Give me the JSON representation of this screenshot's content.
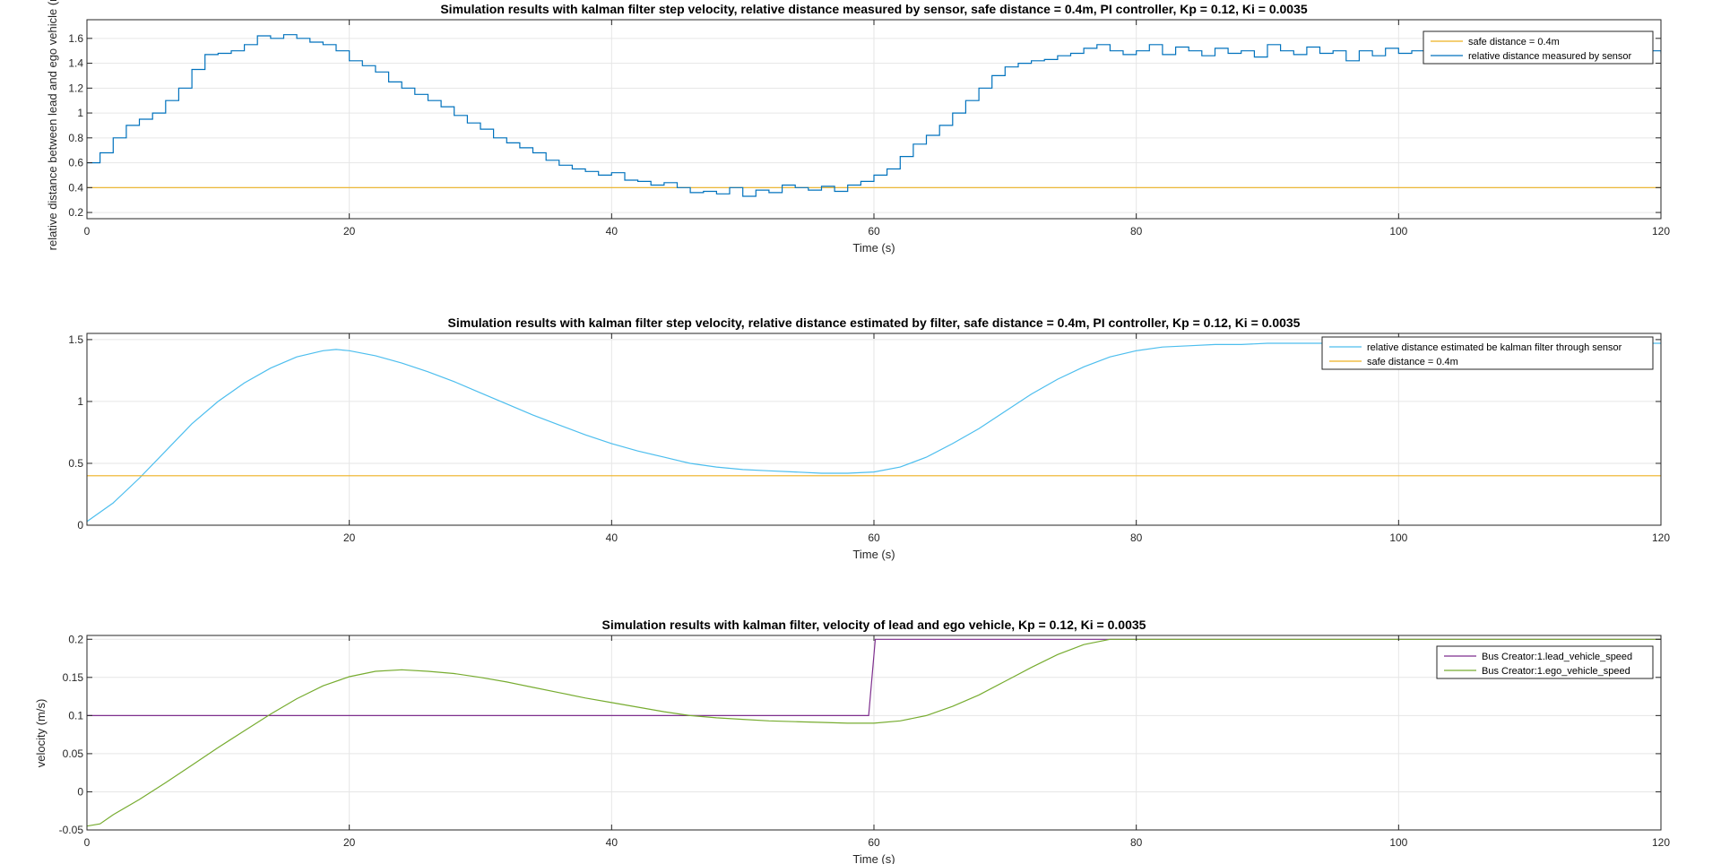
{
  "chart_data": [
    {
      "type": "line",
      "title": "Simulation results with kalman filter step velocity, relative distance measured by sensor, safe distance = 0.4m, PI controller, Kp = 0.12, Ki = 0.0035",
      "xlabel": "Time (s)",
      "ylabel": "relative distance between lead and ego vehicle (m)",
      "xlim": [
        0,
        120
      ],
      "ylim": [
        0.15,
        1.75
      ],
      "xticks": [
        0,
        20,
        40,
        60,
        80,
        100,
        120
      ],
      "xtick_labels": [
        "0",
        "20",
        "40",
        "60",
        "80",
        "100",
        "120"
      ],
      "yticks": [
        0.2,
        0.4,
        0.6,
        0.8,
        1,
        1.2,
        1.4,
        1.6
      ],
      "ytick_labels": [
        "0.2",
        "0.4",
        "0.6",
        "0.8",
        "1",
        "1.2",
        "1.4",
        "1.6"
      ],
      "grid": true,
      "legend_position": "top-right",
      "series": [
        {
          "name": "safe distance = 0.4m",
          "color": "#EDB120",
          "step": false,
          "x": [
            0,
            120
          ],
          "y": [
            0.4,
            0.4
          ]
        },
        {
          "name": "relative distance measured by sensor",
          "color": "#0072BD",
          "step": true,
          "x": [
            0,
            1,
            2,
            3,
            4,
            5,
            6,
            7,
            8,
            9,
            10,
            11,
            12,
            13,
            14,
            15,
            16,
            17,
            18,
            19,
            20,
            21,
            22,
            23,
            24,
            25,
            26,
            27,
            28,
            29,
            30,
            31,
            32,
            33,
            34,
            35,
            36,
            37,
            38,
            39,
            40,
            41,
            42,
            43,
            44,
            45,
            46,
            47,
            48,
            49,
            50,
            51,
            52,
            53,
            54,
            55,
            56,
            57,
            58,
            59,
            60,
            61,
            62,
            63,
            64,
            65,
            66,
            67,
            68,
            69,
            70,
            71,
            72,
            73,
            74,
            75,
            76,
            77,
            78,
            79,
            80,
            81,
            82,
            83,
            84,
            85,
            86,
            87,
            88,
            89,
            90,
            91,
            92,
            93,
            94,
            95,
            96,
            97,
            98,
            99,
            100,
            101,
            102,
            103,
            104,
            105,
            106,
            107,
            108,
            109,
            110,
            111,
            112,
            113,
            114,
            115,
            116,
            117,
            118,
            119,
            120
          ],
          "y": [
            0.6,
            0.68,
            0.8,
            0.9,
            0.95,
            1.0,
            1.1,
            1.2,
            1.35,
            1.47,
            1.48,
            1.5,
            1.55,
            1.62,
            1.6,
            1.63,
            1.6,
            1.57,
            1.55,
            1.5,
            1.42,
            1.38,
            1.33,
            1.25,
            1.2,
            1.15,
            1.1,
            1.05,
            0.98,
            0.92,
            0.87,
            0.8,
            0.76,
            0.72,
            0.68,
            0.62,
            0.58,
            0.55,
            0.53,
            0.5,
            0.52,
            0.46,
            0.45,
            0.42,
            0.44,
            0.4,
            0.36,
            0.37,
            0.35,
            0.4,
            0.33,
            0.38,
            0.36,
            0.42,
            0.4,
            0.38,
            0.41,
            0.37,
            0.42,
            0.45,
            0.5,
            0.55,
            0.65,
            0.75,
            0.82,
            0.9,
            1.0,
            1.1,
            1.2,
            1.3,
            1.37,
            1.4,
            1.42,
            1.43,
            1.46,
            1.48,
            1.52,
            1.55,
            1.5,
            1.47,
            1.5,
            1.55,
            1.47,
            1.53,
            1.5,
            1.46,
            1.52,
            1.48,
            1.5,
            1.45,
            1.55,
            1.5,
            1.47,
            1.53,
            1.48,
            1.5,
            1.42,
            1.5,
            1.46,
            1.52,
            1.48,
            1.5,
            1.45,
            1.52,
            1.47,
            1.5,
            1.43,
            1.5,
            1.48,
            1.45,
            1.52,
            1.47,
            1.42,
            1.5,
            1.44,
            1.5,
            1.4,
            1.46,
            1.43,
            1.5,
            1.48
          ]
        }
      ]
    },
    {
      "type": "line",
      "title": "Simulation results with kalman filter step velocity, relative distance estimated by filter, safe distance = 0.4m, PI controller, Kp = 0.12, Ki = 0.0035",
      "xlabel": "Time (s)",
      "ylabel": "",
      "xlim": [
        0,
        120
      ],
      "ylim": [
        0,
        1.55
      ],
      "xticks": [
        20,
        40,
        60,
        80,
        100,
        120
      ],
      "xtick_labels": [
        "20",
        "40",
        "60",
        "80",
        "100",
        "120"
      ],
      "yticks": [
        0,
        0.5,
        1,
        1.5
      ],
      "ytick_labels": [
        "0",
        "0.5",
        "1",
        "1.5"
      ],
      "grid": true,
      "legend_position": "top-right",
      "series": [
        {
          "name": "relative distance estimated be kalman filter through sensor",
          "color": "#4DBEEE",
          "step": false,
          "x": [
            0,
            2,
            4,
            6,
            8,
            10,
            12,
            14,
            16,
            18,
            19,
            20,
            22,
            24,
            26,
            28,
            30,
            32,
            34,
            36,
            38,
            40,
            42,
            44,
            46,
            48,
            50,
            52,
            54,
            56,
            58,
            60,
            62,
            64,
            66,
            68,
            70,
            72,
            74,
            76,
            78,
            80,
            82,
            84,
            86,
            88,
            90,
            92,
            94,
            96,
            98,
            100,
            102,
            104,
            106,
            108,
            110,
            112,
            114,
            116,
            118,
            120
          ],
          "y": [
            0.03,
            0.18,
            0.38,
            0.6,
            0.82,
            1.0,
            1.15,
            1.27,
            1.36,
            1.41,
            1.42,
            1.41,
            1.37,
            1.31,
            1.24,
            1.16,
            1.07,
            0.98,
            0.89,
            0.81,
            0.73,
            0.66,
            0.6,
            0.55,
            0.5,
            0.47,
            0.45,
            0.44,
            0.43,
            0.42,
            0.42,
            0.43,
            0.47,
            0.55,
            0.66,
            0.78,
            0.92,
            1.06,
            1.18,
            1.28,
            1.36,
            1.41,
            1.44,
            1.45,
            1.46,
            1.46,
            1.47,
            1.47,
            1.47,
            1.47,
            1.47,
            1.47,
            1.47,
            1.47,
            1.47,
            1.47,
            1.47,
            1.47,
            1.47,
            1.47,
            1.47,
            1.47
          ]
        },
        {
          "name": "safe distance = 0.4m",
          "color": "#EDB120",
          "step": false,
          "x": [
            0,
            120
          ],
          "y": [
            0.4,
            0.4
          ]
        }
      ]
    },
    {
      "type": "line",
      "title": "Simulation results with kalman filter, velocity of lead and ego vehicle, Kp = 0.12, Ki = 0.0035",
      "xlabel": "Time (s)",
      "ylabel": "velocity (m/s)",
      "xlim": [
        0,
        120
      ],
      "ylim": [
        -0.05,
        0.205
      ],
      "xticks": [
        0,
        20,
        40,
        60,
        80,
        100,
        120
      ],
      "xtick_labels": [
        "0",
        "20",
        "40",
        "60",
        "80",
        "100",
        "120"
      ],
      "yticks": [
        -0.05,
        0,
        0.05,
        0.1,
        0.15,
        0.2
      ],
      "ytick_labels": [
        "-0.05",
        "0",
        "0.05",
        "0.1",
        "0.15",
        "0.2"
      ],
      "grid": true,
      "legend_position": "top-right",
      "series": [
        {
          "name": "Bus Creator:1.lead_vehicle_speed",
          "color": "#7E2F8E",
          "step": false,
          "x": [
            0,
            59.6,
            60.1,
            120
          ],
          "y": [
            0.1,
            0.1,
            0.2,
            0.2
          ]
        },
        {
          "name": "Bus Creator:1.ego_vehicle_speed",
          "color": "#77AC30",
          "step": false,
          "x": [
            0,
            1,
            2,
            4,
            6,
            8,
            10,
            12,
            14,
            16,
            18,
            20,
            22,
            24,
            26,
            28,
            30,
            32,
            34,
            36,
            38,
            40,
            42,
            44,
            46,
            48,
            50,
            52,
            54,
            56,
            58,
            60,
            62,
            64,
            66,
            68,
            70,
            72,
            74,
            76,
            78,
            80,
            90,
            100,
            110,
            120
          ],
          "y": [
            -0.045,
            -0.042,
            -0.03,
            -0.01,
            0.012,
            0.035,
            0.058,
            0.08,
            0.102,
            0.122,
            0.139,
            0.151,
            0.158,
            0.16,
            0.158,
            0.155,
            0.15,
            0.144,
            0.137,
            0.13,
            0.123,
            0.117,
            0.111,
            0.105,
            0.1,
            0.097,
            0.095,
            0.093,
            0.092,
            0.091,
            0.09,
            0.09,
            0.093,
            0.1,
            0.112,
            0.127,
            0.145,
            0.163,
            0.18,
            0.193,
            0.2,
            0.2,
            0.2,
            0.2,
            0.2,
            0.2
          ]
        }
      ]
    }
  ]
}
